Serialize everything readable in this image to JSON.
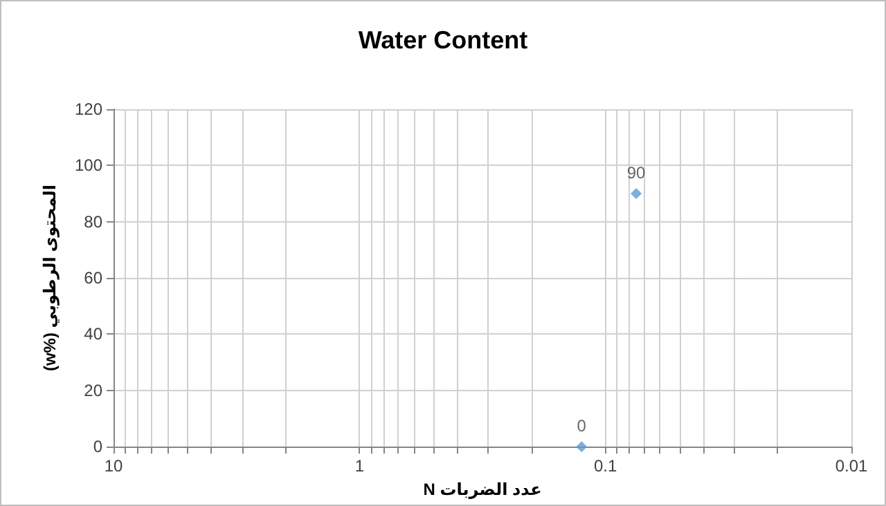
{
  "chart_data": {
    "type": "scatter",
    "title": "Water Content",
    "xlabel": "N عدد الضربات",
    "ylabel": "(w%) المحتوى الرطوبي",
    "x": [
      0.125,
      0.075
    ],
    "series": [
      {
        "color": "#5b9bd5",
        "values": [
          0,
          90
        ]
      }
    ],
    "log": "x",
    "xlim": [
      10,
      0.01
    ],
    "xticks": [
      10,
      {
        "value": 9,
        "label": null
      },
      {
        "value": 8,
        "label": null
      },
      {
        "value": 7,
        "label": null
      },
      {
        "value": 6,
        "label": null
      },
      {
        "value": 5,
        "label": null
      },
      {
        "value": 4,
        "label": null
      },
      {
        "value": 3,
        "label": null
      },
      {
        "value": 2,
        "label": null
      },
      1,
      {
        "value": 0.9,
        "label": null
      },
      {
        "value": 0.8,
        "label": null
      },
      {
        "value": 0.7,
        "label": null
      },
      {
        "value": 0.6,
        "label": null
      },
      {
        "value": 0.5,
        "label": null
      },
      {
        "value": 0.4,
        "label": null
      },
      {
        "value": 0.3,
        "label": null
      },
      {
        "value": 0.2,
        "label": null
      },
      0.1,
      {
        "value": 0.09,
        "label": null
      },
      {
        "value": 0.08,
        "label": null
      },
      {
        "value": 0.07,
        "label": null
      },
      {
        "value": 0.06,
        "label": null
      },
      {
        "value": 0.05,
        "label": null
      },
      {
        "value": 0.04,
        "label": null
      },
      {
        "value": 0.03,
        "label": null
      },
      {
        "value": 0.02,
        "label": null
      },
      0.01
    ],
    "ylim": [
      0,
      120
    ],
    "yticks": [
      0,
      20,
      40,
      60,
      80,
      100,
      120
    ],
    "grid": true,
    "marker": "diamond",
    "data_labels": true
  }
}
